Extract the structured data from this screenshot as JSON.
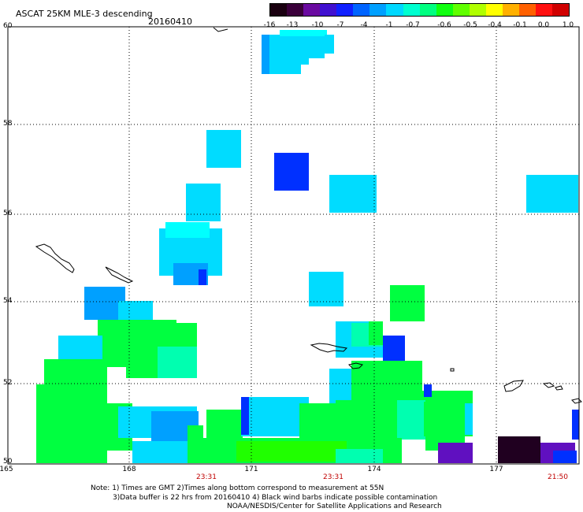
{
  "header": {
    "title": "ASCAT 25KM MLE-3 descending",
    "date": "20160410"
  },
  "colorbar": {
    "labels": [
      "-16",
      "-13",
      "-10",
      "-7",
      "-4",
      "-1",
      "-0.7",
      "-0.6",
      "-0.5",
      "-0.4",
      "-0.1",
      "0.0",
      "1.0"
    ],
    "colors": [
      "#1a0010",
      "#3a003a",
      "#6a0aa0",
      "#4010d0",
      "#1020ff",
      "#0064ff",
      "#00a0ff",
      "#00d8ff",
      "#00ffd0",
      "#00ff80",
      "#10ff10",
      "#60ff00",
      "#b0ff00",
      "#ffff00",
      "#ffb000",
      "#ff6000",
      "#ff1010",
      "#d00000"
    ]
  },
  "axes": {
    "lat_labels": [
      "60",
      "58",
      "56",
      "54",
      "52",
      "50"
    ],
    "lon_labels": [
      "165",
      "168",
      "171",
      "174",
      "177"
    ],
    "time_labels": [
      "23:31",
      "23:31",
      "21:50"
    ]
  },
  "notes": {
    "line1": "Note: 1) Times are GMT 2)Times along bottom correspond to measurement at 55N",
    "line2": "3)Data buffer is 22 hrs from 20160410 4) Black wind barbs indicate possible contamination",
    "line3": "NOAA/NESDIS/Center for Satellite Applications and Research"
  },
  "palette": {
    "light_cyan": "#00dcff",
    "cyan": "#00ffff",
    "blue_mid": "#00a0ff",
    "blue_deep": "#0030ff",
    "green": "#00ff40",
    "bright_green": "#20ff00",
    "aqua": "#00ffb0",
    "purple": "#6010c0",
    "dark_purple": "#200020"
  }
}
